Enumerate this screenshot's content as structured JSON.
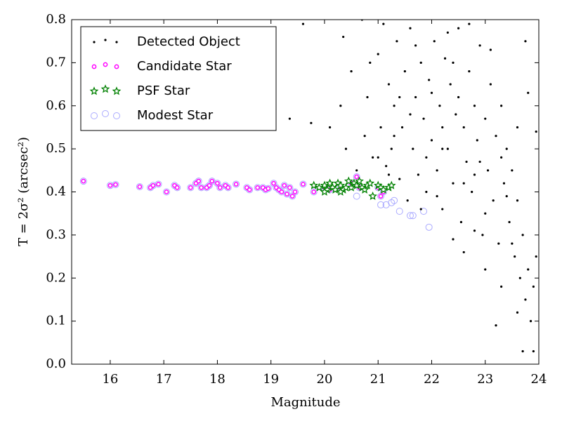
{
  "chart_data": {
    "type": "scatter",
    "x_label": "Magnitude",
    "y_label": "T = 2σ² (arcsec²)",
    "xlim": [
      15.28,
      24
    ],
    "ylim": [
      0,
      0.8
    ],
    "xticks": [
      16,
      17,
      18,
      19,
      20,
      21,
      22,
      23,
      24
    ],
    "yticks": [
      {
        "value": 0,
        "label": "0.0"
      },
      0.1,
      0.2,
      0.3,
      0.4,
      0.5,
      0.6,
      0.7,
      0.8
    ],
    "legend": "upper left",
    "series": [
      {
        "name": "Detected Object",
        "color": "#000000",
        "marker": "dot",
        "x": [
          19.35,
          19.6,
          19.75,
          20.1,
          20.3,
          20.35,
          20.4,
          20.5,
          20.6,
          20.7,
          20.75,
          20.8,
          20.9,
          21.0,
          21.05,
          21.1,
          21.15,
          21.2,
          21.25,
          21.3,
          21.35,
          21.4,
          21.45,
          21.5,
          21.55,
          21.6,
          21.65,
          21.7,
          21.75,
          21.8,
          21.85,
          21.9,
          21.95,
          22.0,
          22.05,
          22.1,
          22.15,
          22.2,
          22.25,
          22.3,
          22.35,
          22.4,
          22.45,
          22.5,
          22.55,
          22.6,
          22.65,
          22.7,
          22.75,
          22.8,
          22.85,
          22.9,
          22.95,
          23.0,
          23.05,
          23.1,
          23.15,
          23.2,
          23.25,
          23.3,
          23.35,
          23.4,
          23.45,
          23.5,
          23.55,
          23.6,
          23.65,
          23.7,
          23.75,
          23.8,
          23.85,
          23.9,
          23.95,
          23.7,
          23.9,
          23.2,
          22.4,
          22.8,
          23.0,
          22.6,
          22.9,
          23.3,
          23.6,
          23.8,
          23.95,
          23.75,
          22.2,
          21.9,
          21.6,
          22.0,
          22.3,
          22.7,
          23.1,
          22.5,
          22.8,
          23.4,
          23.5,
          22.1,
          21.8,
          21.4,
          21.2,
          21.0,
          20.85,
          22.6,
          23.0,
          23.3,
          23.6,
          22.2,
          22.4,
          21.7,
          21.3
        ],
        "values": [
          0.57,
          0.79,
          0.56,
          0.55,
          0.6,
          0.76,
          0.5,
          0.68,
          0.45,
          0.8,
          0.53,
          0.62,
          0.48,
          0.72,
          0.55,
          0.79,
          0.46,
          0.65,
          0.5,
          0.6,
          0.75,
          0.43,
          0.55,
          0.68,
          0.38,
          0.78,
          0.5,
          0.62,
          0.44,
          0.7,
          0.57,
          0.4,
          0.66,
          0.52,
          0.75,
          0.45,
          0.6,
          0.36,
          0.71,
          0.5,
          0.65,
          0.42,
          0.58,
          0.78,
          0.33,
          0.55,
          0.47,
          0.68,
          0.4,
          0.6,
          0.52,
          0.74,
          0.3,
          0.57,
          0.45,
          0.65,
          0.38,
          0.53,
          0.28,
          0.6,
          0.42,
          0.5,
          0.33,
          0.45,
          0.25,
          0.38,
          0.2,
          0.3,
          0.15,
          0.22,
          0.1,
          0.18,
          0.25,
          0.03,
          0.03,
          0.09,
          0.29,
          0.31,
          0.35,
          0.42,
          0.47,
          0.48,
          0.55,
          0.63,
          0.54,
          0.75,
          0.55,
          0.48,
          0.58,
          0.63,
          0.77,
          0.79,
          0.73,
          0.62,
          0.44,
          0.39,
          0.28,
          0.39,
          0.36,
          0.62,
          0.44,
          0.48,
          0.7,
          0.26,
          0.22,
          0.18,
          0.12,
          0.5,
          0.7,
          0.74,
          0.53
        ]
      },
      {
        "name": "Candidate Star",
        "color": "#ff00ff",
        "marker": "circle",
        "x": [
          15.5,
          16.0,
          16.1,
          16.55,
          16.75,
          16.8,
          16.9,
          17.05,
          17.2,
          17.25,
          17.5,
          17.6,
          17.65,
          17.7,
          17.8,
          17.85,
          17.9,
          18.0,
          18.05,
          18.15,
          18.2,
          18.35,
          18.55,
          18.6,
          18.75,
          18.85,
          18.9,
          18.95,
          19.05,
          19.1,
          19.15,
          19.2,
          19.25,
          19.3,
          19.35,
          19.4,
          19.45,
          19.6,
          19.8,
          20.0,
          20.1,
          20.3,
          20.5,
          20.6,
          20.65,
          21.0,
          21.05,
          21.1
        ],
        "values": [
          0.425,
          0.415,
          0.417,
          0.412,
          0.41,
          0.415,
          0.418,
          0.4,
          0.415,
          0.41,
          0.41,
          0.42,
          0.425,
          0.41,
          0.41,
          0.415,
          0.425,
          0.42,
          0.41,
          0.415,
          0.41,
          0.418,
          0.41,
          0.405,
          0.41,
          0.41,
          0.405,
          0.408,
          0.42,
          0.41,
          0.405,
          0.4,
          0.415,
          0.395,
          0.41,
          0.39,
          0.4,
          0.418,
          0.4,
          0.41,
          0.405,
          0.41,
          0.42,
          0.435,
          0.41,
          0.41,
          0.39,
          0.4
        ]
      },
      {
        "name": "PSF Star",
        "color": "#008000",
        "marker": "star",
        "x": [
          19.8,
          19.9,
          20.0,
          20.05,
          20.1,
          20.15,
          20.2,
          20.25,
          20.3,
          20.35,
          20.4,
          20.45,
          20.5,
          20.55,
          20.6,
          20.65,
          20.7,
          20.75,
          20.8,
          20.85,
          20.9,
          21.0,
          21.05,
          21.1,
          21.2,
          21.25,
          20.3,
          20.0
        ],
        "values": [
          0.415,
          0.41,
          0.415,
          0.405,
          0.42,
          0.41,
          0.405,
          0.42,
          0.415,
          0.405,
          0.41,
          0.425,
          0.41,
          0.42,
          0.415,
          0.425,
          0.41,
          0.405,
          0.415,
          0.42,
          0.39,
          0.415,
          0.41,
          0.405,
          0.41,
          0.415,
          0.4,
          0.4
        ]
      },
      {
        "name": "Modest Star",
        "color": "#aaaaff",
        "marker": "ring",
        "x": [
          15.5,
          16.0,
          16.1,
          16.55,
          16.75,
          16.8,
          16.9,
          17.05,
          17.2,
          17.25,
          17.5,
          17.6,
          17.65,
          17.7,
          17.8,
          17.85,
          17.9,
          18.0,
          18.05,
          18.15,
          18.2,
          18.35,
          18.55,
          18.6,
          18.75,
          18.85,
          18.9,
          18.95,
          19.05,
          19.1,
          19.15,
          19.2,
          19.25,
          19.3,
          19.35,
          19.4,
          19.45,
          19.6,
          19.8,
          20.0,
          20.1,
          20.3,
          20.5,
          20.6,
          20.65,
          21.0,
          21.05,
          21.1,
          20.6,
          21.05,
          21.15,
          21.3,
          21.4,
          21.6,
          21.65,
          21.85,
          21.95,
          21.25
        ],
        "values": [
          0.425,
          0.415,
          0.417,
          0.412,
          0.41,
          0.415,
          0.418,
          0.4,
          0.415,
          0.41,
          0.41,
          0.42,
          0.425,
          0.41,
          0.41,
          0.415,
          0.425,
          0.42,
          0.41,
          0.415,
          0.41,
          0.418,
          0.41,
          0.405,
          0.41,
          0.41,
          0.405,
          0.408,
          0.42,
          0.41,
          0.405,
          0.4,
          0.415,
          0.395,
          0.41,
          0.39,
          0.4,
          0.418,
          0.4,
          0.41,
          0.405,
          0.41,
          0.42,
          0.435,
          0.41,
          0.41,
          0.39,
          0.4,
          0.39,
          0.37,
          0.37,
          0.38,
          0.355,
          0.345,
          0.345,
          0.355,
          0.318,
          0.375
        ]
      }
    ]
  }
}
